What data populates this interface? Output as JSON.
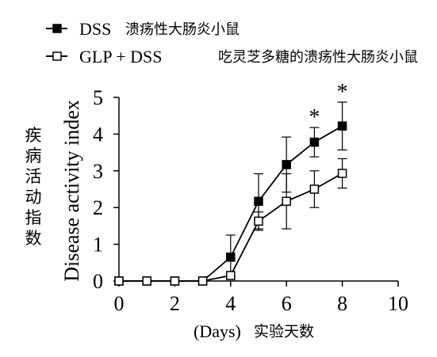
{
  "legend": [
    {
      "latin": "DSS",
      "cjk": "溃疡性大肠炎小鼠"
    },
    {
      "latin": "GLP + DSS",
      "cjk": "吃灵芝多糖的溃疡性大肠炎小鼠"
    }
  ],
  "axes": {
    "xlabel_latin": "(Days)",
    "xlabel_cjk": "实验天数",
    "ylabel_latin": "Disease activity index",
    "ylabel_cjk": [
      "疾",
      "病",
      "活",
      "动",
      "指",
      "数"
    ]
  },
  "chart_data": {
    "type": "line",
    "title": "",
    "xlabel": "(Days) 实验天数",
    "ylabel": "Disease activity index / 疾病活动指数",
    "xlim": [
      0,
      10
    ],
    "ylim": [
      0,
      5
    ],
    "xticks": [
      0,
      2,
      4,
      6,
      8,
      10
    ],
    "yticks": [
      0,
      1,
      2,
      3,
      4,
      5
    ],
    "grid": false,
    "legend_position": "top-left",
    "x": [
      0,
      1,
      2,
      3,
      4,
      5,
      6,
      7,
      8
    ],
    "series": [
      {
        "name": "DSS 溃疡性大肠炎小鼠",
        "marker": "filled-square",
        "values": [
          0,
          0,
          0,
          0,
          0.65,
          2.17,
          3.17,
          3.78,
          4.22
        ],
        "error": [
          0,
          0,
          0,
          0,
          0.6,
          0.75,
          0.75,
          0.4,
          0.65
        ]
      },
      {
        "name": "GLP + DSS 吃灵芝多糖的溃疡性大肠炎小鼠",
        "marker": "open-square",
        "values": [
          0,
          0,
          0,
          0,
          0.15,
          1.63,
          2.17,
          2.5,
          2.93
        ],
        "error": [
          0,
          0,
          0,
          0,
          0,
          0.25,
          0.75,
          0.5,
          0.4
        ]
      }
    ],
    "annotations": [
      {
        "x": 7,
        "text": "*"
      },
      {
        "x": 8,
        "text": "*"
      }
    ]
  }
}
